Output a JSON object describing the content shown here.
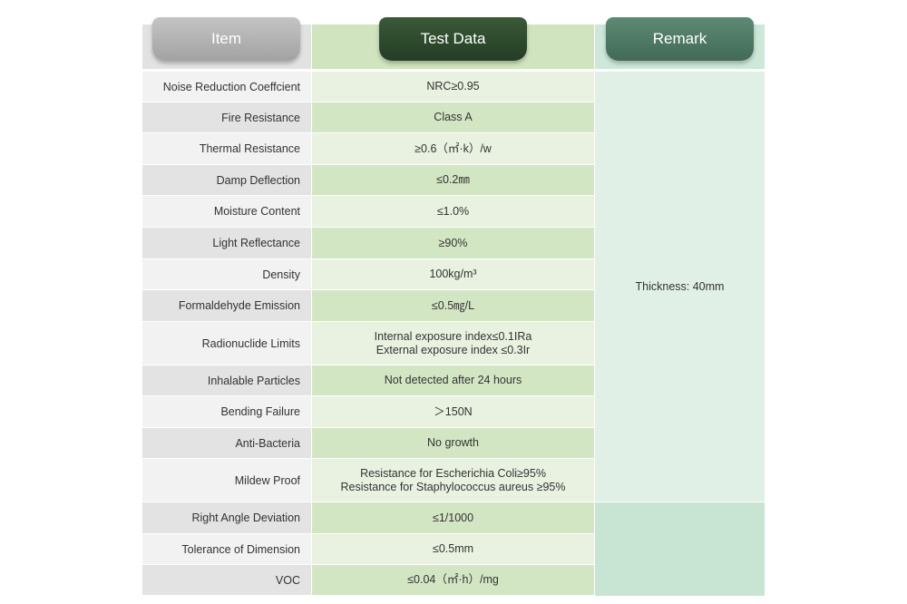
{
  "table": {
    "headers": [
      "Item",
      "Test Data",
      "Remark"
    ],
    "rows": [
      {
        "item": "Noise Reduction Coeffcient",
        "data": [
          "NRC≥0.95"
        ]
      },
      {
        "item": "Fire Resistance",
        "data": [
          "Class A"
        ]
      },
      {
        "item": "Thermal Resistance",
        "data": [
          "≥0.6（㎡·k）/w"
        ]
      },
      {
        "item": "Damp Deflection",
        "data": [
          "≤0.2㎜"
        ]
      },
      {
        "item": "Moisture Content",
        "data": [
          "≤1.0%"
        ]
      },
      {
        "item": "Light Reflectance",
        "data": [
          "≥90%"
        ]
      },
      {
        "item": "Density",
        "data": [
          "100kg/m³"
        ]
      },
      {
        "item": "Formaldehyde Emission",
        "data": [
          "≤0.5㎎/L"
        ]
      },
      {
        "item": "Radionuclide Limits",
        "data": [
          "Internal exposure index≤0.1IRa",
          "External exposure index ≤0.3Ir"
        ]
      },
      {
        "item": "Inhalable Particles",
        "data": [
          "Not detected after 24 hours"
        ]
      },
      {
        "item": "Bending Failure",
        "data": [
          "＞150N"
        ]
      },
      {
        "item": "Anti-Bacteria",
        "data": [
          "No growth"
        ]
      },
      {
        "item": "Mildew Proof",
        "data": [
          "Resistance for Escherichia Coli≥95%",
          "Resistance for Staphylococcus aureus ≥95%"
        ]
      },
      {
        "item": "Right Angle Deviation",
        "data": [
          "≤1/1000"
        ]
      },
      {
        "item": "Tolerance of Dimension",
        "data": [
          "≤0.5mm"
        ]
      },
      {
        "item": "VOC",
        "data": [
          "≤0.04（㎡·h）/mg"
        ]
      }
    ],
    "remark": "Thickness: 40mm"
  }
}
